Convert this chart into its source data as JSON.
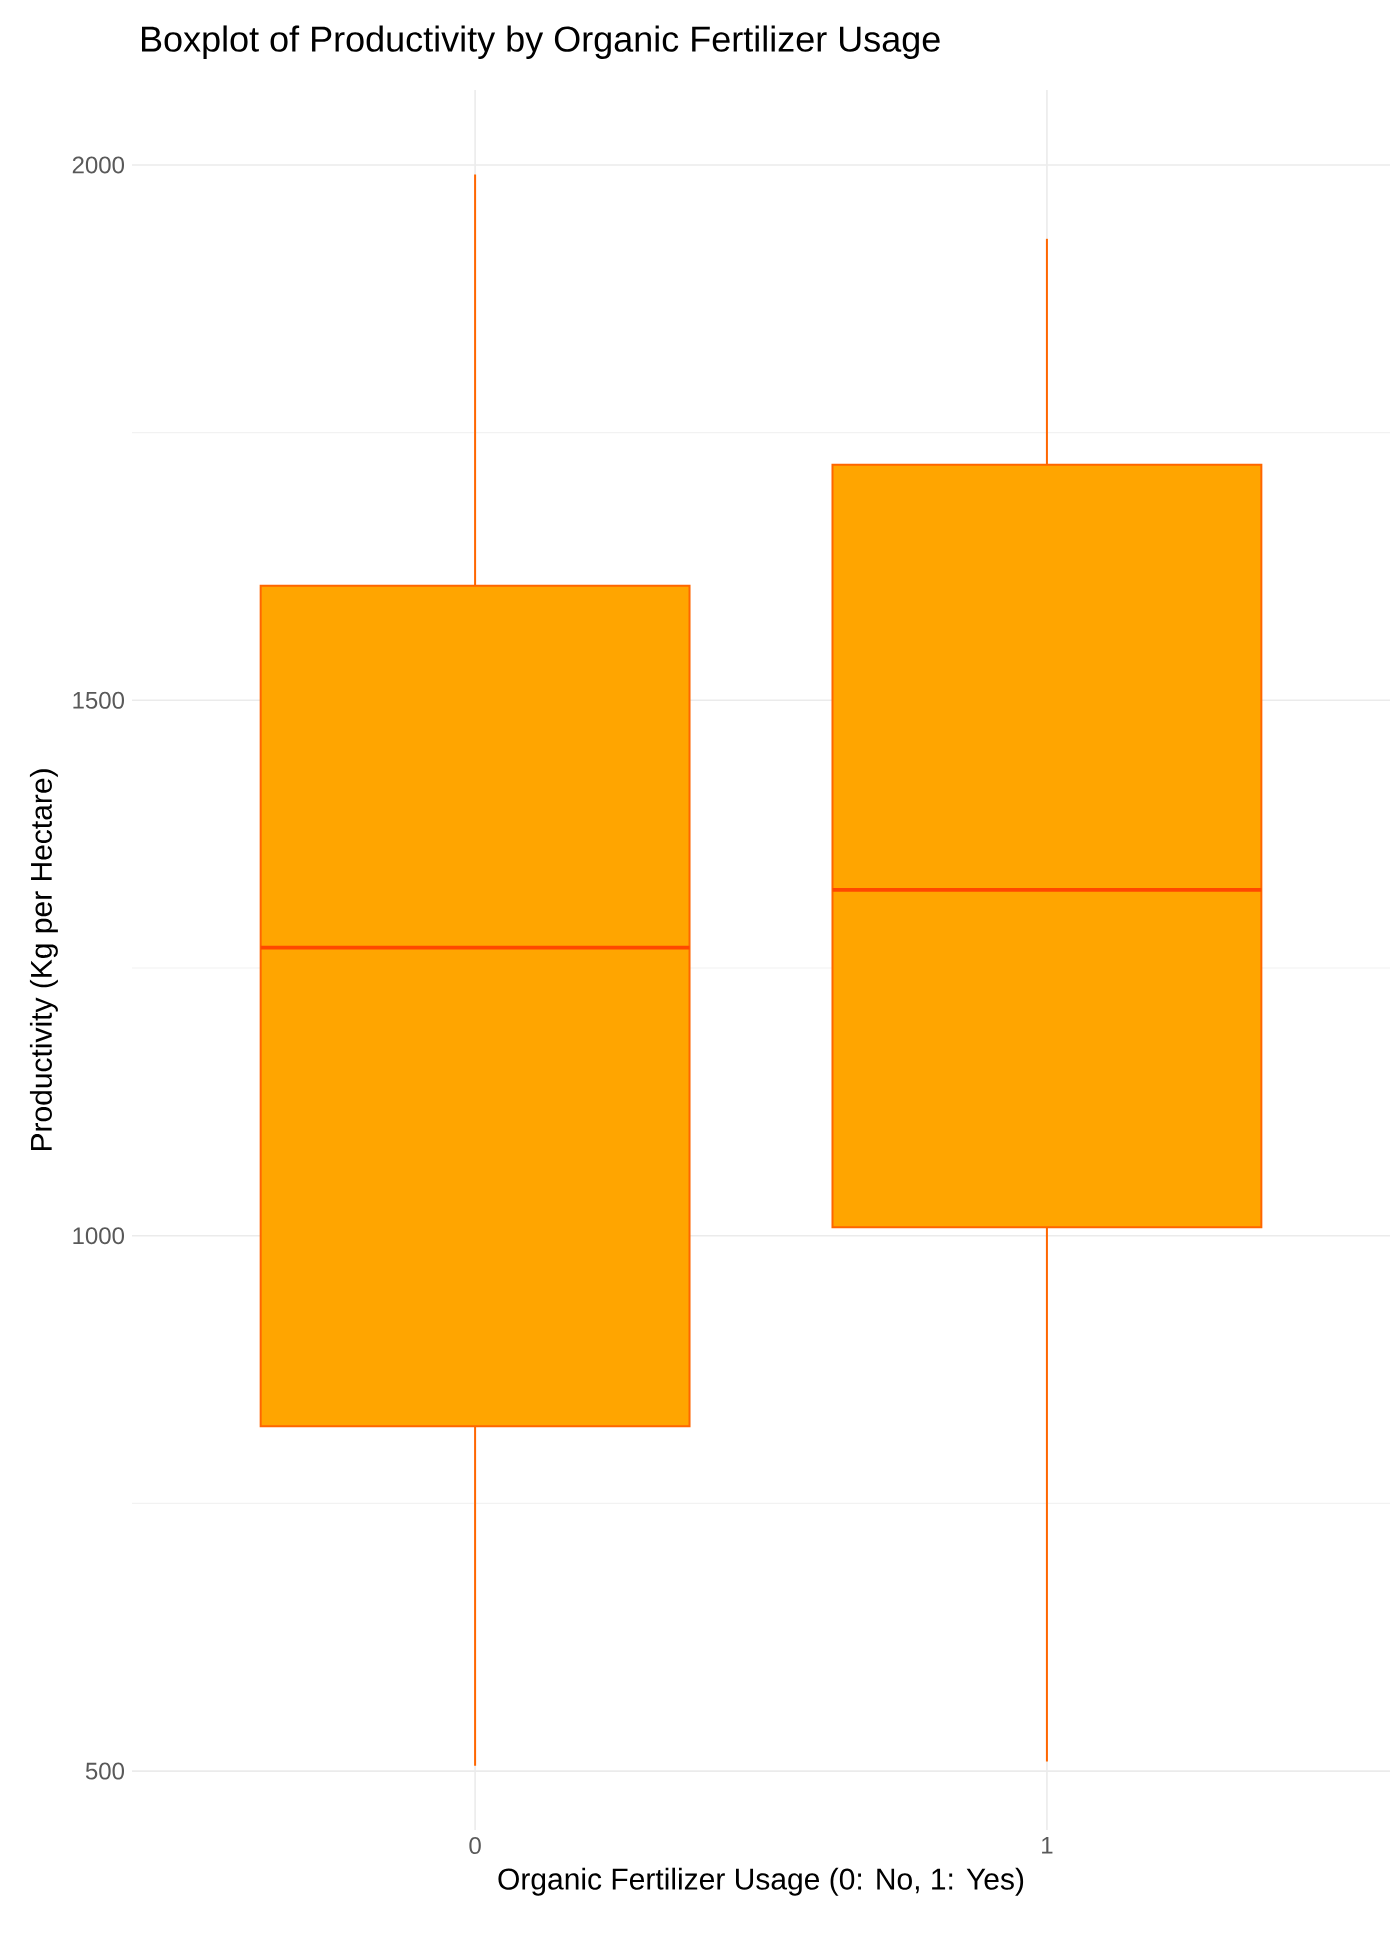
{
  "chart_data": {
    "type": "box",
    "title": "Boxplot of Productivity by Organic Fertilizer Usage",
    "xlabel": "Organic Fertilizer Usage (0: No, 1: Yes)",
    "ylabel": "Productivity (Kg per Hectare)",
    "categories": [
      "0",
      "1"
    ],
    "series": [
      {
        "color": "#ffa500",
        "boxes": [
          {
            "low": 505,
            "q1": 822,
            "median": 1269,
            "q3": 1607,
            "high": 1991
          },
          {
            "low": 509,
            "q1": 1008,
            "median": 1323,
            "q3": 1720,
            "high": 1931
          }
        ]
      }
    ],
    "ylim": [
      445,
      2070
    ],
    "yticks": [
      500,
      1000,
      1500,
      2000
    ],
    "grid": true
  }
}
